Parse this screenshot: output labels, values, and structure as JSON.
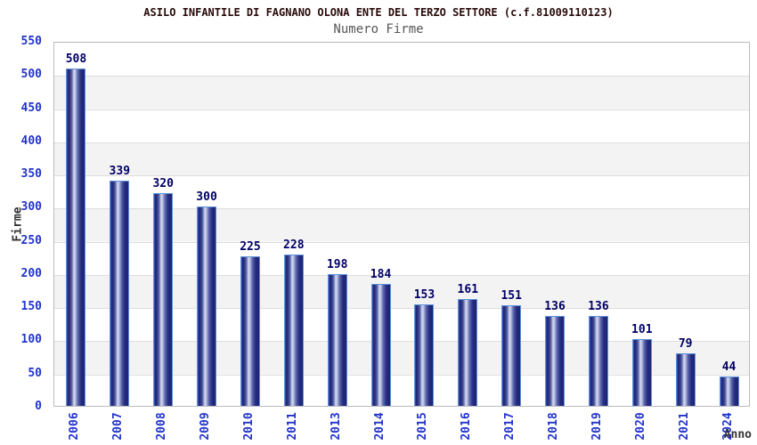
{
  "chart_data": {
    "type": "bar",
    "title": "ASILO INFANTILE DI FAGNANO OLONA ENTE DEL TERZO SETTORE (c.f.81009110123)",
    "subtitle": "Numero Firme",
    "xlabel": "Anno",
    "ylabel": "Firme",
    "categories": [
      "2006",
      "2007",
      "2008",
      "2009",
      "2010",
      "2011",
      "2013",
      "2014",
      "2015",
      "2016",
      "2017",
      "2018",
      "2019",
      "2020",
      "2021",
      "2024"
    ],
    "values": [
      508,
      339,
      320,
      300,
      225,
      228,
      198,
      184,
      153,
      161,
      151,
      136,
      136,
      101,
      79,
      44
    ],
    "ylim": [
      0,
      550
    ],
    "ytick_step": 50,
    "yticks": [
      0,
      50,
      100,
      150,
      200,
      250,
      300,
      350,
      400,
      450,
      500,
      550
    ],
    "grid": true,
    "legend": "none",
    "value_labels": true,
    "x_tick_rotation": 90,
    "plot_bands_alternating": true
  },
  "colors": {
    "title": "#2a0a0a",
    "subtitle": "#555555",
    "axis_title": "#333333",
    "tick_label": "#2233cc",
    "value_label": "#000066",
    "bar_dark": "#1d2274",
    "bar_light": "#d9dcf0",
    "bar_border": "#5f93d8",
    "plot_band": "#f3f3f3",
    "gridline": "#dddddd",
    "plot_border": "#bbbbbb"
  }
}
